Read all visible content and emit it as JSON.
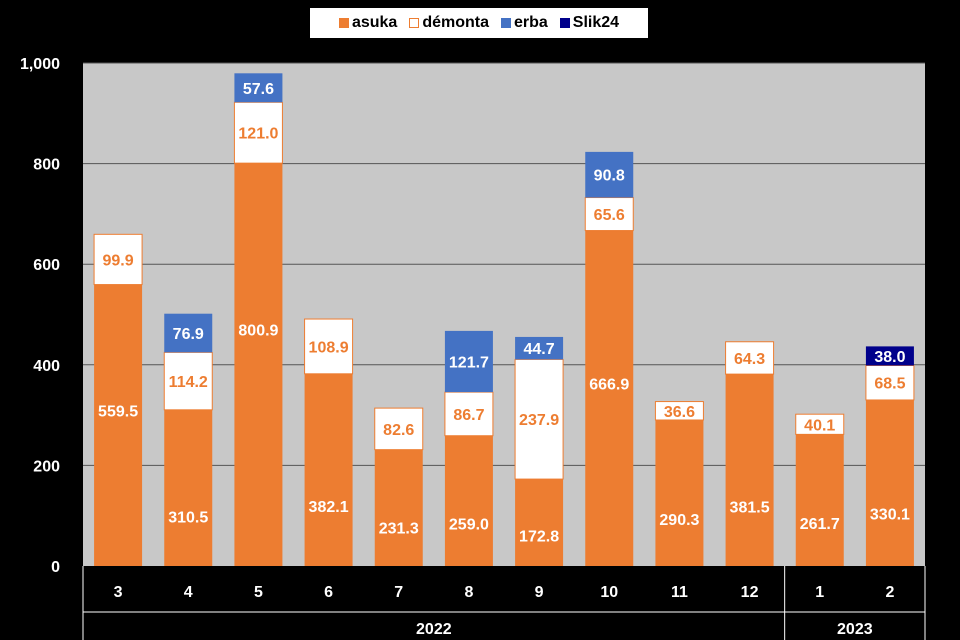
{
  "chart_data": {
    "type": "bar",
    "stacked": true,
    "categories": [
      "3",
      "4",
      "5",
      "6",
      "7",
      "8",
      "9",
      "10",
      "11",
      "12",
      "1",
      "2"
    ],
    "year_groups": [
      {
        "label": "2022",
        "count": 10
      },
      {
        "label": "2023",
        "count": 2
      }
    ],
    "series": [
      {
        "name": "asuka",
        "color": "#ED7D31",
        "values": [
          559.5,
          310.5,
          800.9,
          382.1,
          231.3,
          259.0,
          172.8,
          666.9,
          290.3,
          381.5,
          261.7,
          330.1
        ]
      },
      {
        "name": "démonta",
        "color": "#FFFFFF",
        "values": [
          99.9,
          114.2,
          121.0,
          108.9,
          82.6,
          86.7,
          237.9,
          65.6,
          36.6,
          64.3,
          40.1,
          68.5
        ]
      },
      {
        "name": "erba",
        "color": "#4472C4",
        "values": [
          null,
          76.9,
          57.6,
          null,
          null,
          121.7,
          44.7,
          90.8,
          null,
          null,
          null,
          null
        ]
      },
      {
        "name": "Slik24",
        "color": "#00008B",
        "values": [
          null,
          null,
          null,
          null,
          null,
          null,
          null,
          null,
          null,
          null,
          null,
          38.0
        ]
      }
    ],
    "ylim": [
      0,
      1000
    ],
    "yticks": [
      0,
      200,
      400,
      600,
      800,
      1000
    ],
    "ytick_labels": [
      "0",
      "200",
      "400",
      "600",
      "800",
      "1,000"
    ],
    "grid": true,
    "legend": "top-center",
    "plot_background": "#C8C8C8"
  }
}
